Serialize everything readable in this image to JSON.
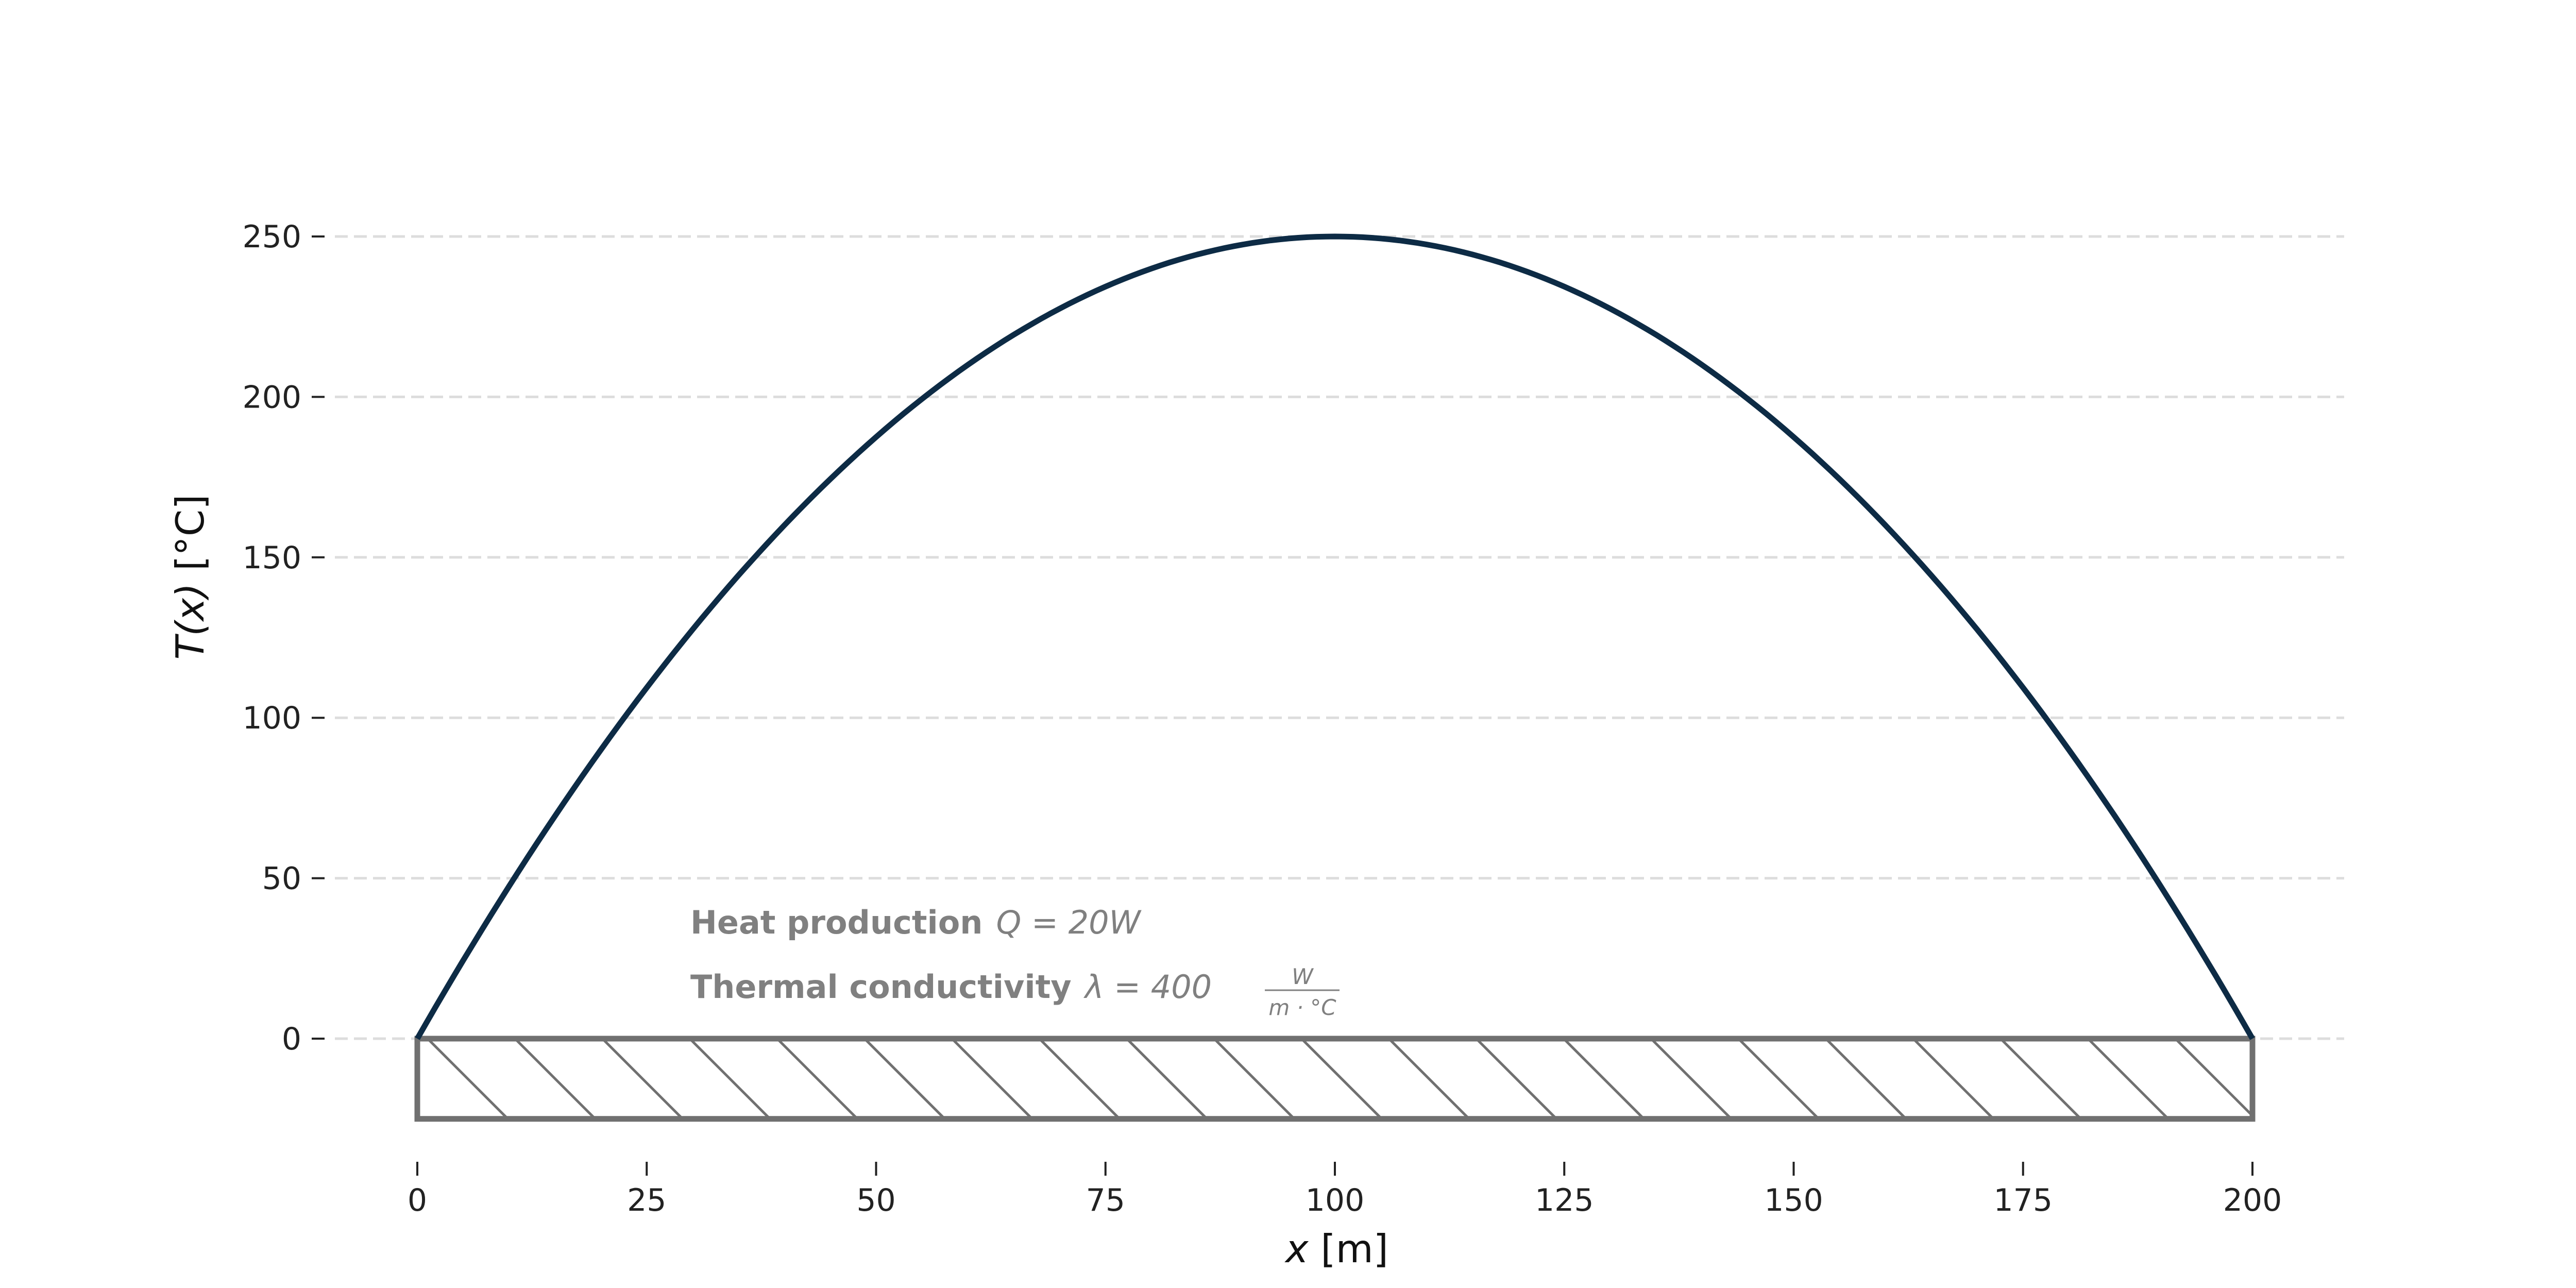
{
  "chart_data": {
    "type": "line",
    "title": "",
    "xlabel_var": "x",
    "xlabel_unit": " [m]",
    "ylabel_var": "T(x)",
    "ylabel_unit": " [°C]",
    "xlim": [
      0,
      200
    ],
    "ylim": [
      -25,
      250
    ],
    "x_ticks": [
      0,
      25,
      50,
      75,
      100,
      125,
      150,
      175,
      200
    ],
    "x_tick_labels": [
      "0",
      "25",
      "50",
      "75",
      "100",
      "125",
      "150",
      "175",
      "200"
    ],
    "y_ticks": [
      0,
      50,
      100,
      150,
      200,
      250
    ],
    "y_tick_labels": [
      "0",
      "50",
      "100",
      "150",
      "200",
      "250"
    ],
    "grid": "horizontal dashed",
    "series": [
      {
        "color": "#0d2b45",
        "x": [
          0,
          10,
          20,
          30,
          40,
          50,
          60,
          70,
          80,
          90,
          100,
          110,
          120,
          130,
          140,
          150,
          160,
          170,
          180,
          190,
          200
        ],
        "y": [
          0,
          47.5,
          90,
          127.5,
          160,
          187.5,
          210,
          227.5,
          240,
          247.5,
          250,
          247.5,
          240,
          227.5,
          210,
          187.5,
          160,
          127.5,
          90,
          47.5,
          0
        ]
      }
    ],
    "rod": {
      "x_start": 0,
      "x_end": 200,
      "y_top": 0,
      "y_bottom": -25,
      "hatch_count": 21,
      "color": "#707070"
    },
    "annotations": {
      "heat_label": "Heat production",
      "heat_formula": "Q = 20W",
      "conductivity_label": "Thermal conductivity",
      "conductivity_formula": "λ = 400",
      "unit_numerator": "W",
      "unit_denominator": "m · °C"
    }
  },
  "colors": {
    "curve": "#0d2b45",
    "grid": "#dddddd",
    "annotation": "#808080",
    "rod": "#707070"
  }
}
